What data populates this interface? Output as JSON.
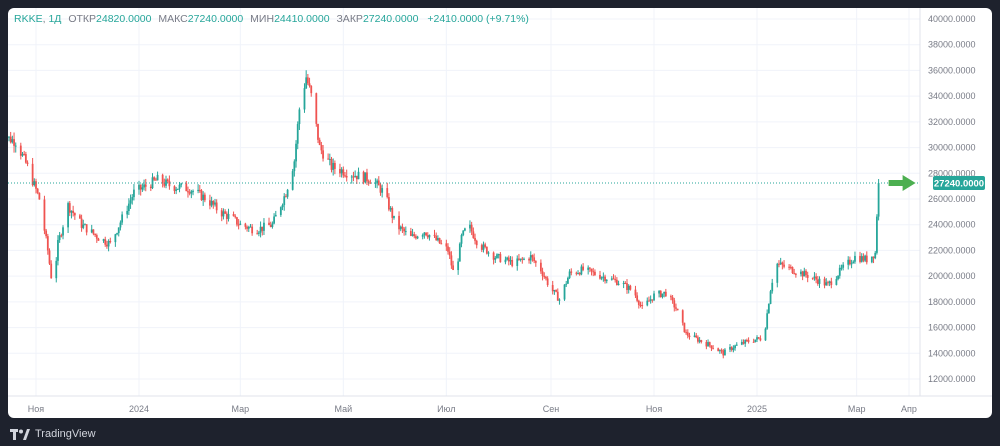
{
  "legend": {
    "symbol": "RKKE",
    "interval": "1Д",
    "open_label": "ОТКР",
    "open": "24820.0000",
    "high_label": "МАКС",
    "high": "27240.0000",
    "low_label": "МИН",
    "low": "24410.0000",
    "close_label": "ЗАКР",
    "close": "27240.0000",
    "change": "+2410.0000 (+9.71%)"
  },
  "footer": {
    "brand": "TradingView"
  },
  "colors": {
    "up": "#26a69a",
    "down": "#ef5350",
    "arrow": "#4caf50",
    "price_label_bg": "#26a69a"
  },
  "chart_data": {
    "type": "candlestick",
    "yaxis": {
      "min": 11000,
      "max": 40000,
      "ticks": [
        "40000.0000",
        "38000.0000",
        "36000.0000",
        "34000.0000",
        "32000.0000",
        "30000.0000",
        "28000.0000",
        "26000.0000",
        "24000.0000",
        "22000.0000",
        "20000.0000",
        "18000.0000",
        "16000.0000",
        "14000.0000",
        "12000.0000"
      ]
    },
    "xaxis": {
      "ticks": [
        "Ноя",
        "2024",
        "Мар",
        "Май",
        "Июл",
        "Сен",
        "Ноя",
        "2025",
        "Мар",
        "Апр"
      ]
    },
    "last_price": "27240.0000",
    "grid": true,
    "trend": [
      [
        "2023-10-10",
        31000
      ],
      [
        "2023-10-20",
        30500
      ],
      [
        "2023-10-27",
        28500
      ],
      [
        "2023-11-03",
        26000
      ],
      [
        "2023-11-08",
        22000
      ],
      [
        "2023-11-11",
        19000
      ],
      [
        "2023-11-14",
        22500
      ],
      [
        "2023-11-20",
        25500
      ],
      [
        "2023-11-28",
        24000
      ],
      [
        "2023-12-08",
        23000
      ],
      [
        "2023-12-15",
        22500
      ],
      [
        "2023-12-22",
        24500
      ],
      [
        "2023-12-29",
        26500
      ],
      [
        "2024-01-05",
        27000
      ],
      [
        "2024-01-12",
        27500
      ],
      [
        "2024-01-20",
        27000
      ],
      [
        "2024-01-31",
        26800
      ],
      [
        "2024-02-10",
        26000
      ],
      [
        "2024-02-18",
        25000
      ],
      [
        "2024-02-25",
        24500
      ],
      [
        "2024-03-01",
        24000
      ],
      [
        "2024-03-10",
        23600
      ],
      [
        "2024-03-20",
        24000
      ],
      [
        "2024-03-28",
        26500
      ],
      [
        "2024-04-02",
        29000
      ],
      [
        "2024-04-05",
        33000
      ],
      [
        "2024-04-09",
        35500
      ],
      [
        "2024-04-12",
        34000
      ],
      [
        "2024-04-17",
        30000
      ],
      [
        "2024-04-24",
        28500
      ],
      [
        "2024-05-05",
        28000
      ],
      [
        "2024-05-18",
        27500
      ],
      [
        "2024-05-25",
        26500
      ],
      [
        "2024-06-01",
        24000
      ],
      [
        "2024-06-10",
        23000
      ],
      [
        "2024-06-18",
        23500
      ],
      [
        "2024-06-25",
        22800
      ],
      [
        "2024-07-02",
        22000
      ],
      [
        "2024-07-06",
        19800
      ],
      [
        "2024-07-10",
        23000
      ],
      [
        "2024-07-14",
        24000
      ],
      [
        "2024-07-20",
        22500
      ],
      [
        "2024-07-30",
        21500
      ],
      [
        "2024-08-10",
        21000
      ],
      [
        "2024-08-20",
        21500
      ],
      [
        "2024-08-26",
        20500
      ],
      [
        "2024-09-01",
        19000
      ],
      [
        "2024-09-06",
        18200
      ],
      [
        "2024-09-12",
        20200
      ],
      [
        "2024-09-20",
        20500
      ],
      [
        "2024-10-01",
        20000
      ],
      [
        "2024-10-12",
        19500
      ],
      [
        "2024-10-20",
        18800
      ],
      [
        "2024-10-25",
        17500
      ],
      [
        "2024-11-01",
        18500
      ],
      [
        "2024-11-08",
        18700
      ],
      [
        "2024-11-14",
        17500
      ],
      [
        "2024-11-20",
        15500
      ],
      [
        "2024-11-28",
        15000
      ],
      [
        "2024-12-06",
        14500
      ],
      [
        "2024-12-12",
        14000
      ],
      [
        "2024-12-18",
        14500
      ],
      [
        "2024-12-28",
        15000
      ],
      [
        "2025-01-05",
        15200
      ],
      [
        "2025-01-09",
        19000
      ],
      [
        "2025-01-12",
        21000
      ],
      [
        "2025-01-22",
        20500
      ],
      [
        "2025-02-01",
        20000
      ],
      [
        "2025-02-12",
        19300
      ],
      [
        "2025-02-20",
        20500
      ],
      [
        "2025-02-28",
        21500
      ],
      [
        "2025-03-07",
        21300
      ],
      [
        "2025-03-12",
        21800
      ],
      [
        "2025-03-13",
        24820
      ],
      [
        "2025-03-14",
        27240
      ]
    ]
  }
}
